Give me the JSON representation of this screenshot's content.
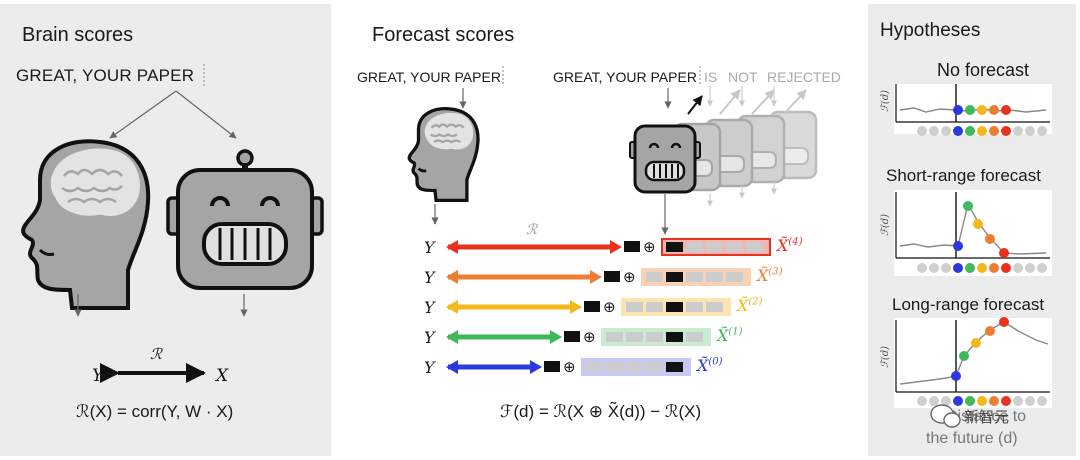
{
  "panels": {
    "brain": {
      "title": "Brain scores",
      "sentence": "GREAT, YOUR PAPER",
      "symbol_r": "ℛ",
      "y": "Y",
      "x": "X",
      "formula": "ℛ(X) = corr(Y, W · X)"
    },
    "forecast": {
      "title": "Forecast scores",
      "sentence_brain": "GREAT, YOUR PAPER",
      "sentence_model": "GREAT, YOUR PAPER",
      "future_words": [
        "IS",
        "NOT",
        "REJECTED"
      ],
      "symbol_r": "ℛ",
      "rows": [
        {
          "y": "Y",
          "label": "X̃",
          "sup": "(4)",
          "color": "#e8311f"
        },
        {
          "y": "Y",
          "label": "X̃",
          "sup": "(3)",
          "color": "#ef7c33"
        },
        {
          "y": "Y",
          "label": "X̃",
          "sup": "(2)",
          "color": "#f4b71c"
        },
        {
          "y": "Y",
          "label": "X̃",
          "sup": "(1)",
          "color": "#3fb85a"
        },
        {
          "y": "Y",
          "label": "X̃",
          "sup": "(0)",
          "color": "#2a3ae0"
        }
      ],
      "oplus": "⊕",
      "formula": "ℱ(d) = ℛ(X ⊕ X̃(d)) − ℛ(X)"
    },
    "hypotheses": {
      "title": "Hypotheses",
      "cases": [
        {
          "title": "No forecast",
          "axis": "ℱ(d)"
        },
        {
          "title": "Short-range forecast",
          "axis": "ℱ(d)"
        },
        {
          "title": "Long-range forecast",
          "axis": "ℱ(d)"
        }
      ],
      "footer_line1": "Distance to",
      "footer_line2": "the future (d)"
    }
  },
  "dot_colors": [
    "#2a3ae0",
    "#3fb85a",
    "#f4b71c",
    "#ef7c33",
    "#e8311f"
  ],
  "watermark": "新智元"
}
